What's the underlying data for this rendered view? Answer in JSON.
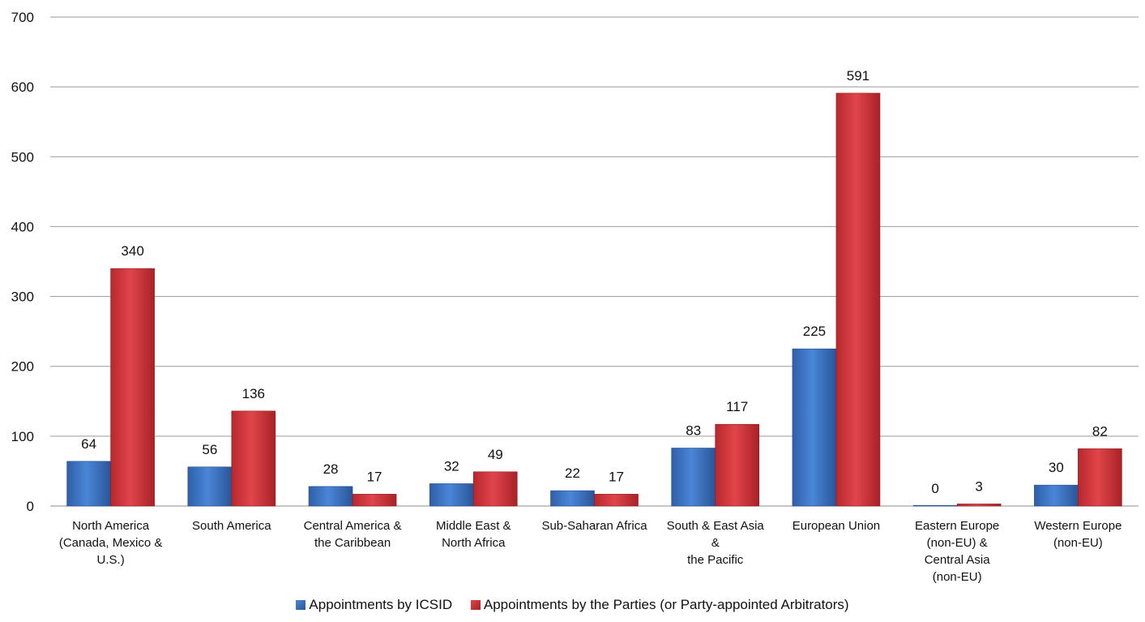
{
  "chart_data": {
    "type": "bar",
    "categories": [
      [
        "North America",
        "(Canada, Mexico &",
        "U.S.)"
      ],
      [
        "South America"
      ],
      [
        "Central America &",
        "the Caribbean"
      ],
      [
        "Middle East &",
        "North Africa"
      ],
      [
        "Sub-Saharan Africa"
      ],
      [
        "South & East Asia",
        "&",
        "the Pacific"
      ],
      [
        "European Union"
      ],
      [
        "Eastern Europe",
        "(non-EU) &",
        "Central Asia",
        "(non-EU)"
      ],
      [
        "Western Europe",
        "(non-EU)"
      ]
    ],
    "series": [
      {
        "name": "Appointments by ICSID",
        "color": "#3a72c6",
        "values": [
          64,
          56,
          28,
          32,
          22,
          83,
          225,
          0,
          30
        ]
      },
      {
        "name": "Appointments by the Parties (or Party-appointed Arbitrators)",
        "color": "#d9353b",
        "values": [
          340,
          136,
          17,
          49,
          17,
          117,
          591,
          3,
          82
        ]
      }
    ],
    "ylim": [
      0,
      700
    ],
    "yticks": [
      0,
      100,
      200,
      300,
      400,
      500,
      600,
      700
    ],
    "grid": true,
    "legend_position": "bottom",
    "data_labels": true
  }
}
